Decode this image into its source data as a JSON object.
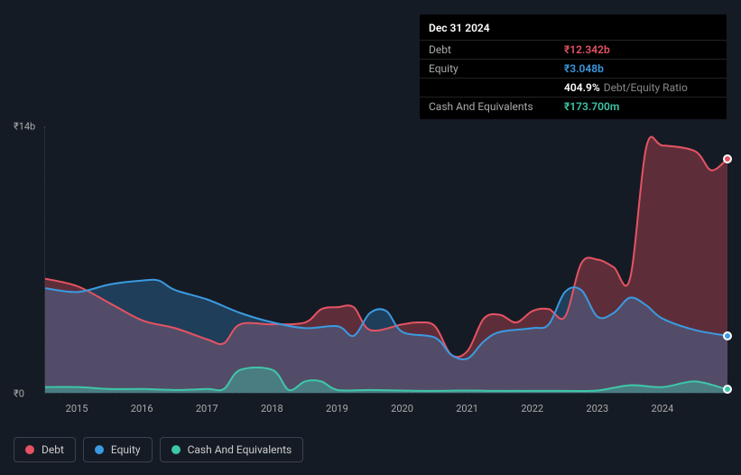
{
  "tooltip": {
    "date": "Dec 31 2024",
    "rows": [
      {
        "label": "Debt",
        "value": "₹12.342b",
        "cls": "debt"
      },
      {
        "label": "Equity",
        "value": "₹3.048b",
        "cls": "equity"
      },
      {
        "label": "",
        "value": "404.9%",
        "suffix": "Debt/Equity Ratio",
        "cls": "ratio"
      },
      {
        "label": "Cash And Equivalents",
        "value": "₹173.700m",
        "cls": "cash"
      }
    ]
  },
  "chart": {
    "type": "area",
    "background_color": "#151b24",
    "grid_color": "#3a4250",
    "text_color": "#aaaaaa",
    "ylim": [
      0,
      14
    ],
    "y_ticks": [
      {
        "v": 0,
        "label": "₹0"
      },
      {
        "v": 14,
        "label": "₹14b"
      }
    ],
    "x_years": [
      2015,
      2016,
      2017,
      2018,
      2019,
      2020,
      2021,
      2022,
      2023,
      2024
    ],
    "x_range": [
      2014.5,
      2025.0
    ],
    "series": {
      "debt": {
        "color": "#e55363",
        "fill": "rgba(229,83,99,0.35)",
        "points": [
          [
            2014.5,
            6.0
          ],
          [
            2015.0,
            5.6
          ],
          [
            2015.5,
            4.7
          ],
          [
            2016.0,
            3.8
          ],
          [
            2016.5,
            3.4
          ],
          [
            2017.0,
            2.8
          ],
          [
            2017.25,
            2.6
          ],
          [
            2017.5,
            3.6
          ],
          [
            2018.0,
            3.6
          ],
          [
            2018.5,
            3.7
          ],
          [
            2018.75,
            4.4
          ],
          [
            2019.0,
            4.5
          ],
          [
            2019.25,
            4.5
          ],
          [
            2019.5,
            3.3
          ],
          [
            2020.0,
            3.6
          ],
          [
            2020.25,
            3.7
          ],
          [
            2020.5,
            3.5
          ],
          [
            2020.75,
            2.0
          ],
          [
            2021.0,
            2.2
          ],
          [
            2021.25,
            3.9
          ],
          [
            2021.5,
            4.1
          ],
          [
            2021.75,
            3.7
          ],
          [
            2022.0,
            4.3
          ],
          [
            2022.25,
            4.4
          ],
          [
            2022.5,
            4.0
          ],
          [
            2022.75,
            6.8
          ],
          [
            2023.0,
            7.0
          ],
          [
            2023.25,
            6.6
          ],
          [
            2023.5,
            6.0
          ],
          [
            2023.75,
            12.9
          ],
          [
            2024.0,
            13.0
          ],
          [
            2024.5,
            12.7
          ],
          [
            2024.75,
            11.7
          ],
          [
            2025.0,
            12.3
          ]
        ]
      },
      "equity": {
        "color": "#3b9ae1",
        "fill": "rgba(59,154,225,0.28)",
        "points": [
          [
            2014.5,
            5.5
          ],
          [
            2015.0,
            5.3
          ],
          [
            2015.5,
            5.7
          ],
          [
            2016.0,
            5.9
          ],
          [
            2016.25,
            5.9
          ],
          [
            2016.5,
            5.4
          ],
          [
            2017.0,
            4.9
          ],
          [
            2017.5,
            4.2
          ],
          [
            2018.0,
            3.7
          ],
          [
            2018.5,
            3.4
          ],
          [
            2019.0,
            3.5
          ],
          [
            2019.25,
            3.0
          ],
          [
            2019.5,
            4.2
          ],
          [
            2019.75,
            4.3
          ],
          [
            2020.0,
            3.2
          ],
          [
            2020.5,
            2.9
          ],
          [
            2020.75,
            2.0
          ],
          [
            2021.0,
            1.8
          ],
          [
            2021.25,
            2.7
          ],
          [
            2021.5,
            3.2
          ],
          [
            2022.0,
            3.4
          ],
          [
            2022.25,
            3.6
          ],
          [
            2022.5,
            5.3
          ],
          [
            2022.75,
            5.4
          ],
          [
            2023.0,
            4.0
          ],
          [
            2023.25,
            4.2
          ],
          [
            2023.5,
            5.0
          ],
          [
            2023.75,
            4.6
          ],
          [
            2024.0,
            3.9
          ],
          [
            2024.5,
            3.3
          ],
          [
            2025.0,
            3.0
          ]
        ]
      },
      "cash": {
        "color": "#3ec7a9",
        "fill": "rgba(62,199,169,0.4)",
        "points": [
          [
            2014.5,
            0.3
          ],
          [
            2015.0,
            0.3
          ],
          [
            2015.5,
            0.2
          ],
          [
            2016.0,
            0.2
          ],
          [
            2016.5,
            0.15
          ],
          [
            2017.0,
            0.2
          ],
          [
            2017.25,
            0.2
          ],
          [
            2017.5,
            1.2
          ],
          [
            2018.0,
            1.2
          ],
          [
            2018.25,
            0.15
          ],
          [
            2018.5,
            0.6
          ],
          [
            2018.75,
            0.6
          ],
          [
            2019.0,
            0.15
          ],
          [
            2019.5,
            0.15
          ],
          [
            2020.0,
            0.12
          ],
          [
            2020.5,
            0.1
          ],
          [
            2021.0,
            0.12
          ],
          [
            2021.5,
            0.1
          ],
          [
            2022.0,
            0.1
          ],
          [
            2022.5,
            0.1
          ],
          [
            2023.0,
            0.12
          ],
          [
            2023.5,
            0.4
          ],
          [
            2024.0,
            0.3
          ],
          [
            2024.5,
            0.6
          ],
          [
            2025.0,
            0.17
          ]
        ]
      }
    },
    "markers": [
      {
        "series": "debt",
        "x": 2025.0,
        "y": 12.3
      },
      {
        "series": "equity",
        "x": 2025.0,
        "y": 3.0
      },
      {
        "series": "cash",
        "x": 2025.0,
        "y": 0.17
      }
    ]
  },
  "legend": [
    {
      "key": "debt",
      "label": "Debt",
      "color": "#e55363"
    },
    {
      "key": "equity",
      "label": "Equity",
      "color": "#3b9ae1"
    },
    {
      "key": "cash",
      "label": "Cash And Equivalents",
      "color": "#3ec7a9"
    }
  ]
}
